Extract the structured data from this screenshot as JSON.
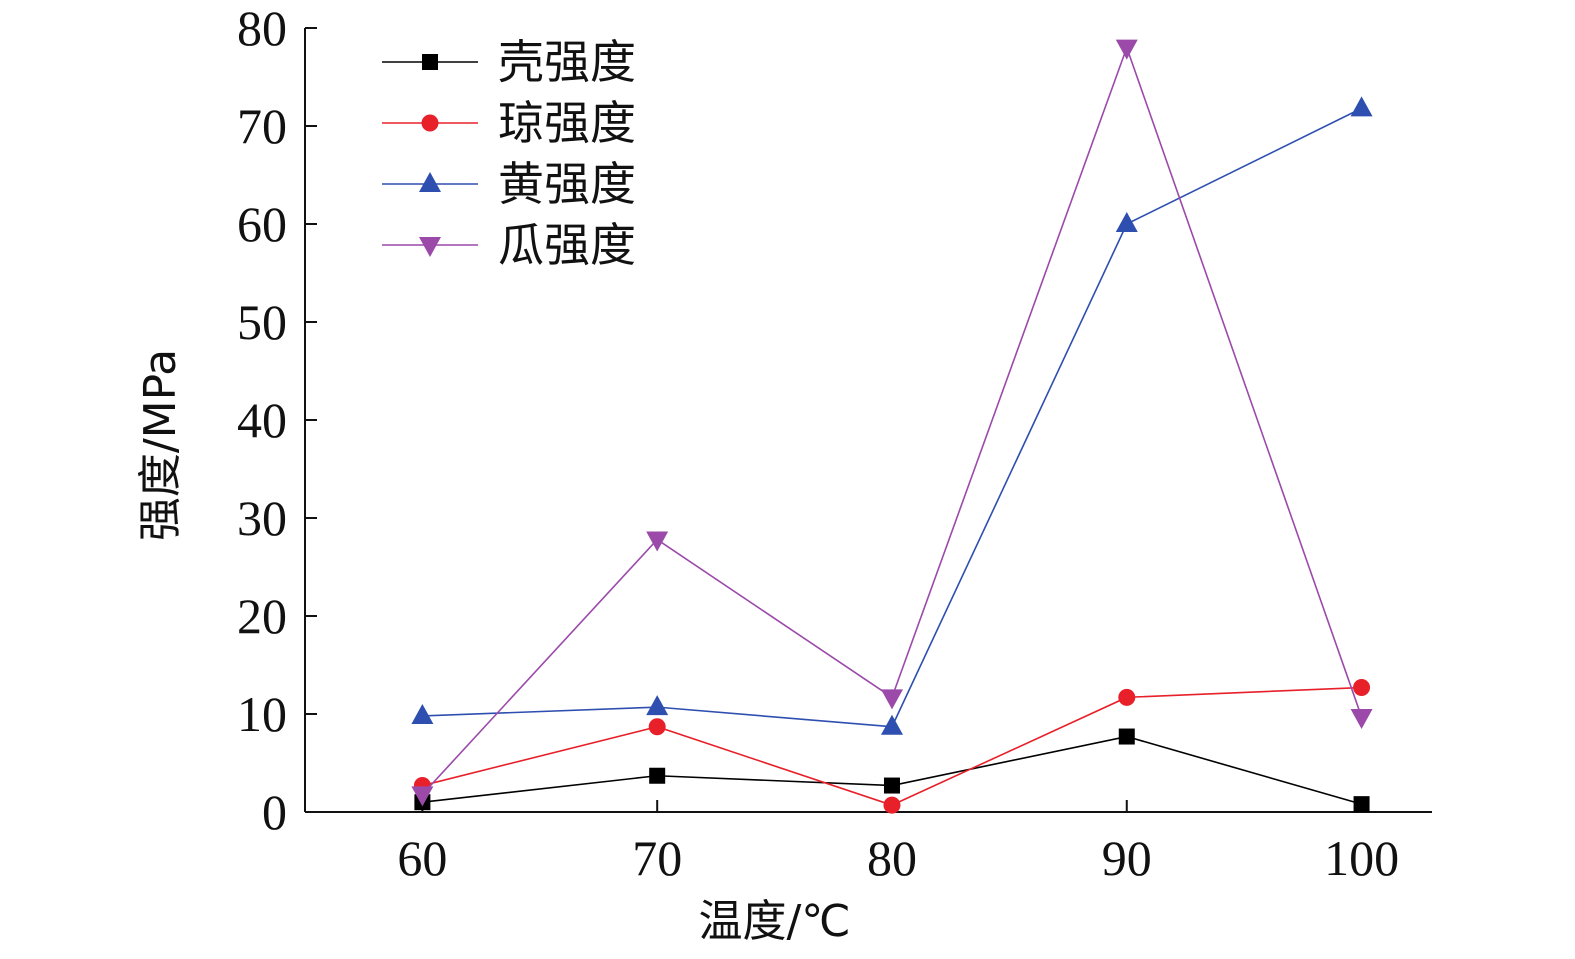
{
  "chart_data": {
    "type": "line",
    "x": [
      60,
      70,
      80,
      90,
      100
    ],
    "xlabel": "温度/℃",
    "ylabel": "强度/MPa",
    "xlim": [
      55,
      103
    ],
    "ylim": [
      0,
      80
    ],
    "xticks": [
      60,
      70,
      80,
      90,
      100
    ],
    "yticks": [
      0,
      10,
      20,
      30,
      40,
      50,
      60,
      70,
      80
    ],
    "grid": false,
    "legend_position": "top-left",
    "series": [
      {
        "name": "壳强度",
        "color": "#000000",
        "marker": "square",
        "values": [
          1,
          3.7,
          2.7,
          7.7,
          0.8
        ]
      },
      {
        "name": "琼强度",
        "color": "#e8202a",
        "marker": "circle",
        "values": [
          2.7,
          8.7,
          0.7,
          11.7,
          12.7
        ]
      },
      {
        "name": "黄强度",
        "color": "#2e4fb0",
        "marker": "triangle-up",
        "values": [
          9.8,
          10.7,
          8.7,
          60,
          71.8
        ]
      },
      {
        "name": "瓜强度",
        "color": "#9b4aaa",
        "marker": "triangle-down",
        "values": [
          1.8,
          27.8,
          11.7,
          78,
          9.7
        ]
      }
    ]
  }
}
